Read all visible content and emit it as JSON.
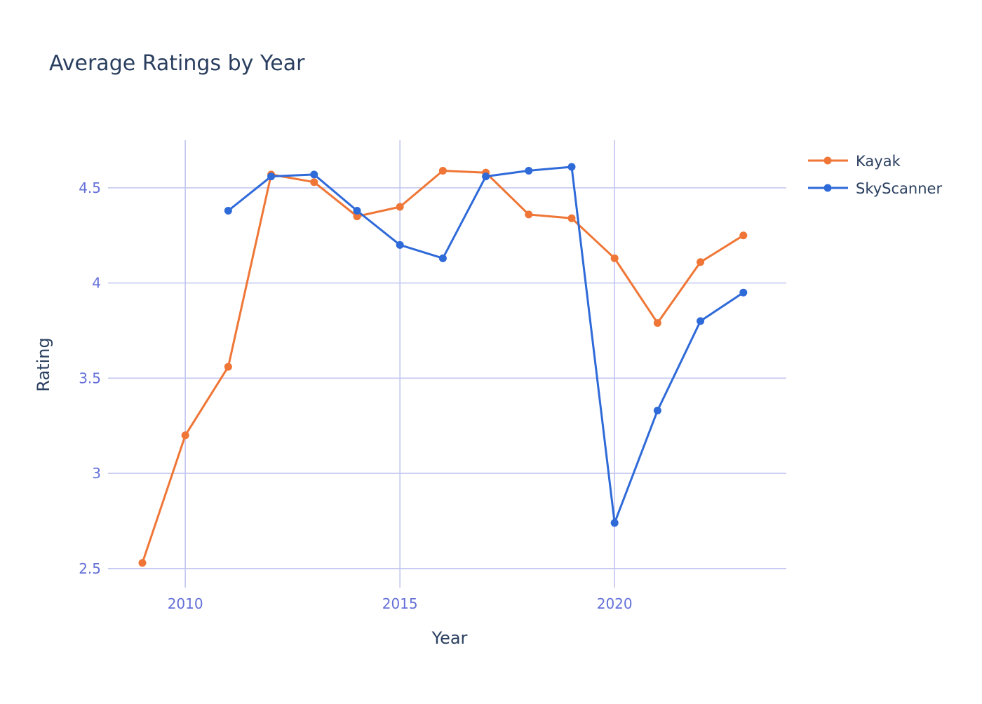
{
  "chart_data": {
    "type": "line",
    "title": "Average Ratings by Year",
    "xlabel": "Year",
    "ylabel": "Rating",
    "xlim": [
      2008.2,
      2024
    ],
    "ylim": [
      2.4,
      4.75
    ],
    "xticks": [
      2010,
      2015,
      2020
    ],
    "yticks": [
      2.5,
      3,
      3.5,
      4,
      4.5
    ],
    "ytick_labels": [
      "2.5",
      "3",
      "3.5",
      "4",
      "4.5"
    ],
    "grid": true,
    "legend_position": "top-right",
    "series": [
      {
        "name": "Kayak",
        "color": "#ef7636",
        "x": [
          2009,
          2010,
          2011,
          2012,
          2013,
          2014,
          2015,
          2016,
          2017,
          2018,
          2019,
          2020,
          2021,
          2022,
          2023
        ],
        "y": [
          2.53,
          3.2,
          3.56,
          4.57,
          4.53,
          4.35,
          4.4,
          4.59,
          4.58,
          4.36,
          4.34,
          4.13,
          3.79,
          4.11,
          4.25
        ]
      },
      {
        "name": "SkyScanner",
        "color": "#2f6ad9",
        "x": [
          2011,
          2012,
          2013,
          2014,
          2015,
          2016,
          2017,
          2018,
          2019,
          2020,
          2021,
          2022,
          2023
        ],
        "y": [
          4.38,
          4.56,
          4.57,
          4.38,
          4.2,
          4.13,
          4.56,
          4.59,
          4.61,
          2.74,
          3.33,
          3.8,
          3.95
        ]
      }
    ]
  }
}
